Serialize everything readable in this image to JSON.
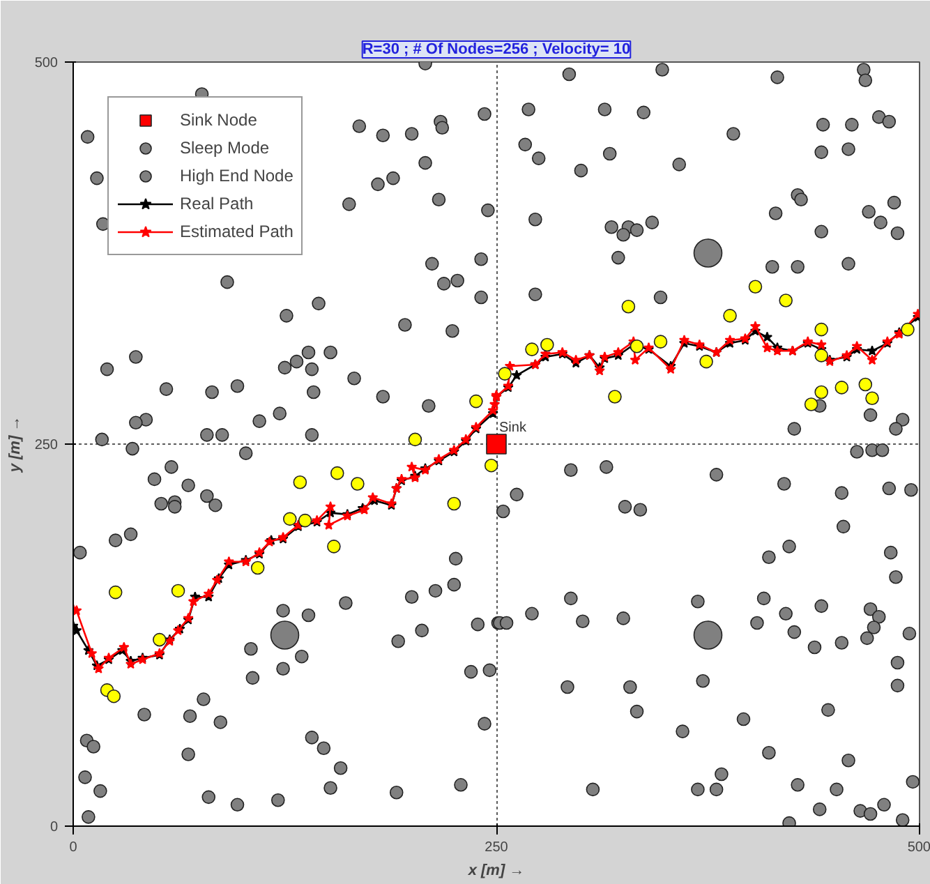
{
  "chart_data": {
    "type": "scatter",
    "title": "R=30 ; # Of Nodes=256 ; Velocity= 10",
    "xlabel": "x [m] →",
    "ylabel": "y [m] →",
    "xlim": [
      0,
      500
    ],
    "ylim": [
      0,
      500
    ],
    "xticks": [
      0,
      250,
      500
    ],
    "yticks": [
      0,
      250,
      500
    ],
    "grid": true,
    "legend": "top left",
    "annotations": [
      {
        "text": "Sink",
        "x": 250,
        "y": 250
      }
    ],
    "series": [
      {
        "name": "Sink Node",
        "marker": "square",
        "color": "#ff0000",
        "x": [
          250
        ],
        "values": [
          250
        ]
      },
      {
        "name": "Sleep Mode",
        "marker": "circle",
        "color": "#808080",
        "x": [
          208,
          76,
          8.5,
          169,
          183,
          200,
          217,
          218,
          243,
          14,
          208,
          180,
          189,
          216,
          163,
          245,
          17.6,
          212,
          241,
          219,
          227,
          241,
          91,
          145,
          126,
          196,
          224,
          37,
          20,
          139,
          132,
          152,
          125,
          141,
          166,
          55,
          82,
          97,
          142,
          183,
          210,
          43,
          37,
          110,
          122,
          79,
          88,
          141,
          17,
          293,
          348,
          416,
          467,
          468,
          269,
          314,
          337,
          267,
          275,
          300,
          317,
          358,
          390,
          443,
          460,
          442,
          458,
          476,
          482,
          428,
          430,
          415,
          470,
          485,
          477,
          487,
          442,
          273,
          318,
          328,
          333,
          325,
          342,
          322,
          413,
          428,
          458,
          273,
          347,
          441,
          471,
          426,
          490,
          486,
          35,
          102,
          58,
          48,
          68,
          79,
          84,
          52,
          60,
          60,
          25,
          34,
          4,
          124,
          139,
          161,
          105,
          135,
          124,
          106,
          77,
          42,
          69,
          87,
          8,
          12,
          68,
          7,
          16,
          9,
          80,
          97,
          121,
          141,
          148,
          158,
          152,
          191,
          229,
          200,
          214,
          225,
          226,
          206,
          192,
          239,
          235,
          246,
          243,
          251,
          463,
          472,
          478,
          294,
          315,
          380,
          420,
          262,
          254,
          326,
          335,
          454,
          482,
          495,
          455,
          423,
          411,
          483,
          486,
          294,
          271,
          252,
          256,
          301,
          325,
          369,
          408,
          404,
          421,
          442,
          426,
          438,
          454,
          471,
          476,
          473,
          469,
          494,
          487,
          487,
          292,
          329,
          333,
          372,
          396,
          360,
          446,
          411,
          458,
          383,
          380,
          369,
          307,
          428,
          451,
          441,
          423,
          465,
          471,
          479,
          490,
          496
        ],
        "values": [
          499,
          479,
          451,
          458,
          452,
          453,
          461,
          457,
          466,
          424,
          434,
          420,
          424,
          410,
          407,
          403,
          394,
          368,
          371,
          355,
          357,
          346,
          356,
          342,
          334,
          328,
          324,
          307,
          299,
          310,
          304,
          310,
          300,
          299,
          293,
          286,
          284,
          288,
          284,
          281,
          275,
          266,
          264,
          265,
          270,
          256,
          256,
          256,
          253,
          492,
          495,
          490,
          495,
          488,
          469,
          469,
          467,
          446,
          437,
          429,
          440,
          433,
          453,
          459,
          459,
          441,
          443,
          464,
          461,
          413,
          410,
          401,
          402,
          408,
          395,
          388,
          389,
          397,
          392,
          392,
          390,
          387,
          395,
          372,
          366,
          366,
          368,
          348,
          346,
          275,
          269,
          260,
          266,
          260,
          247,
          244,
          235,
          227,
          223,
          216,
          210,
          211,
          212,
          209,
          187,
          191,
          179,
          141,
          138,
          146,
          116,
          111,
          103,
          97,
          83,
          73,
          72,
          68,
          56,
          52,
          47,
          32,
          23,
          6,
          19,
          14,
          17,
          58,
          51,
          38,
          25,
          22,
          27,
          150,
          154,
          158,
          175,
          128,
          121,
          132,
          101,
          102,
          67,
          133,
          245,
          246,
          246,
          233,
          235,
          230,
          224,
          217,
          206,
          209,
          207,
          218,
          221,
          220,
          196,
          183,
          176,
          179,
          163,
          149,
          139,
          133,
          133,
          134,
          136,
          147,
          149,
          133,
          139,
          144,
          127,
          117,
          120,
          142,
          137,
          130,
          123,
          126,
          107,
          92,
          91,
          91,
          75,
          95,
          70,
          62,
          76,
          48,
          43,
          34,
          24,
          24,
          24,
          27,
          24,
          11,
          2,
          10,
          8,
          14,
          4,
          29
        ]
      },
      {
        "name": "High End Node",
        "marker": "circle",
        "color": "#808080",
        "x": [
          125,
          375,
          375
        ],
        "values": [
          125,
          375,
          125
        ]
      },
      {
        "marker": "circle",
        "color": "#ffff00",
        "x": [
          238,
          202,
          403,
          421,
          328,
          388,
          442,
          271,
          280,
          333,
          347,
          374,
          255,
          442,
          493,
          320,
          454,
          468,
          442,
          472,
          436,
          247,
          134,
          156,
          168,
          225,
          128,
          137,
          154,
          109,
          25,
          62,
          51,
          20,
          24
        ],
        "values": [
          278,
          253,
          353,
          344,
          340,
          334,
          325,
          312,
          315,
          314,
          317,
          304,
          296,
          308,
          325,
          281,
          287,
          289,
          284,
          280,
          276,
          236,
          225,
          231,
          224,
          211,
          201,
          200,
          183,
          169,
          153,
          154,
          122,
          89,
          85
        ]
      },
      {
        "name": "Real Path",
        "type": "line",
        "marker": "star",
        "line_style": "solid",
        "color": "#000000",
        "x": [
          0,
          2,
          9,
          14,
          21,
          29,
          34,
          41,
          51,
          57,
          63,
          68,
          72,
          80,
          86,
          92,
          102,
          110,
          117,
          124,
          133,
          144,
          152,
          162,
          171,
          178,
          188,
          191,
          194,
          202,
          208,
          216,
          225,
          232,
          238,
          248,
          250,
          257,
          262,
          273,
          279,
          289,
          297,
          305,
          311,
          314,
          322,
          331,
          340,
          353,
          361,
          370,
          380,
          388,
          397,
          403,
          410,
          416,
          425,
          434,
          442,
          447,
          457,
          463,
          472,
          481,
          488,
          499
        ],
        "values": [
          131,
          128,
          115,
          105,
          109,
          115,
          108,
          110,
          112,
          122,
          129,
          135,
          150,
          150,
          162,
          171,
          174,
          178,
          187,
          188,
          196,
          199,
          205,
          204,
          208,
          213,
          210,
          221,
          226,
          229,
          234,
          239,
          245,
          252,
          260,
          270,
          281,
          287,
          295,
          302,
          307,
          309,
          303,
          308,
          300,
          306,
          308,
          315,
          312,
          301,
          316,
          314,
          310,
          316,
          318,
          324,
          320,
          313,
          311,
          316,
          312,
          305,
          307,
          312,
          311,
          316,
          323,
          333
        ]
      },
      {
        "name": "Estimated Path",
        "type": "line",
        "marker": "star",
        "line_style": "solid",
        "color": "#ff0000",
        "x": [
          0,
          2,
          11,
          15,
          21,
          30,
          34,
          41,
          51,
          57,
          62,
          68,
          71,
          80,
          85,
          92,
          102,
          110,
          116,
          124,
          133,
          144,
          152,
          151,
          162,
          172,
          177,
          188,
          191,
          194,
          202,
          200,
          208,
          216,
          225,
          232,
          238,
          248,
          250,
          249,
          250,
          257,
          258,
          273,
          279,
          289,
          297,
          305,
          311,
          314,
          322,
          331,
          332,
          340,
          353,
          361,
          370,
          380,
          388,
          397,
          403,
          410,
          416,
          425,
          434,
          442,
          447,
          457,
          463,
          472,
          481,
          488,
          499
        ],
        "values": [
          142,
          141,
          113,
          103,
          110,
          117,
          106,
          109,
          113,
          121,
          128,
          136,
          147,
          152,
          161,
          173,
          173,
          179,
          186,
          189,
          197,
          200,
          209,
          197,
          203,
          207,
          215,
          211,
          221,
          227,
          228,
          235,
          233,
          240,
          246,
          253,
          261,
          272,
          282,
          276,
          281,
          288,
          301,
          302,
          309,
          310,
          305,
          308,
          298,
          307,
          310,
          317,
          305,
          313,
          299,
          318,
          315,
          310,
          318,
          319,
          327,
          313,
          311,
          311,
          317,
          315,
          304,
          308,
          314,
          305,
          317,
          322,
          335
        ]
      }
    ]
  }
}
